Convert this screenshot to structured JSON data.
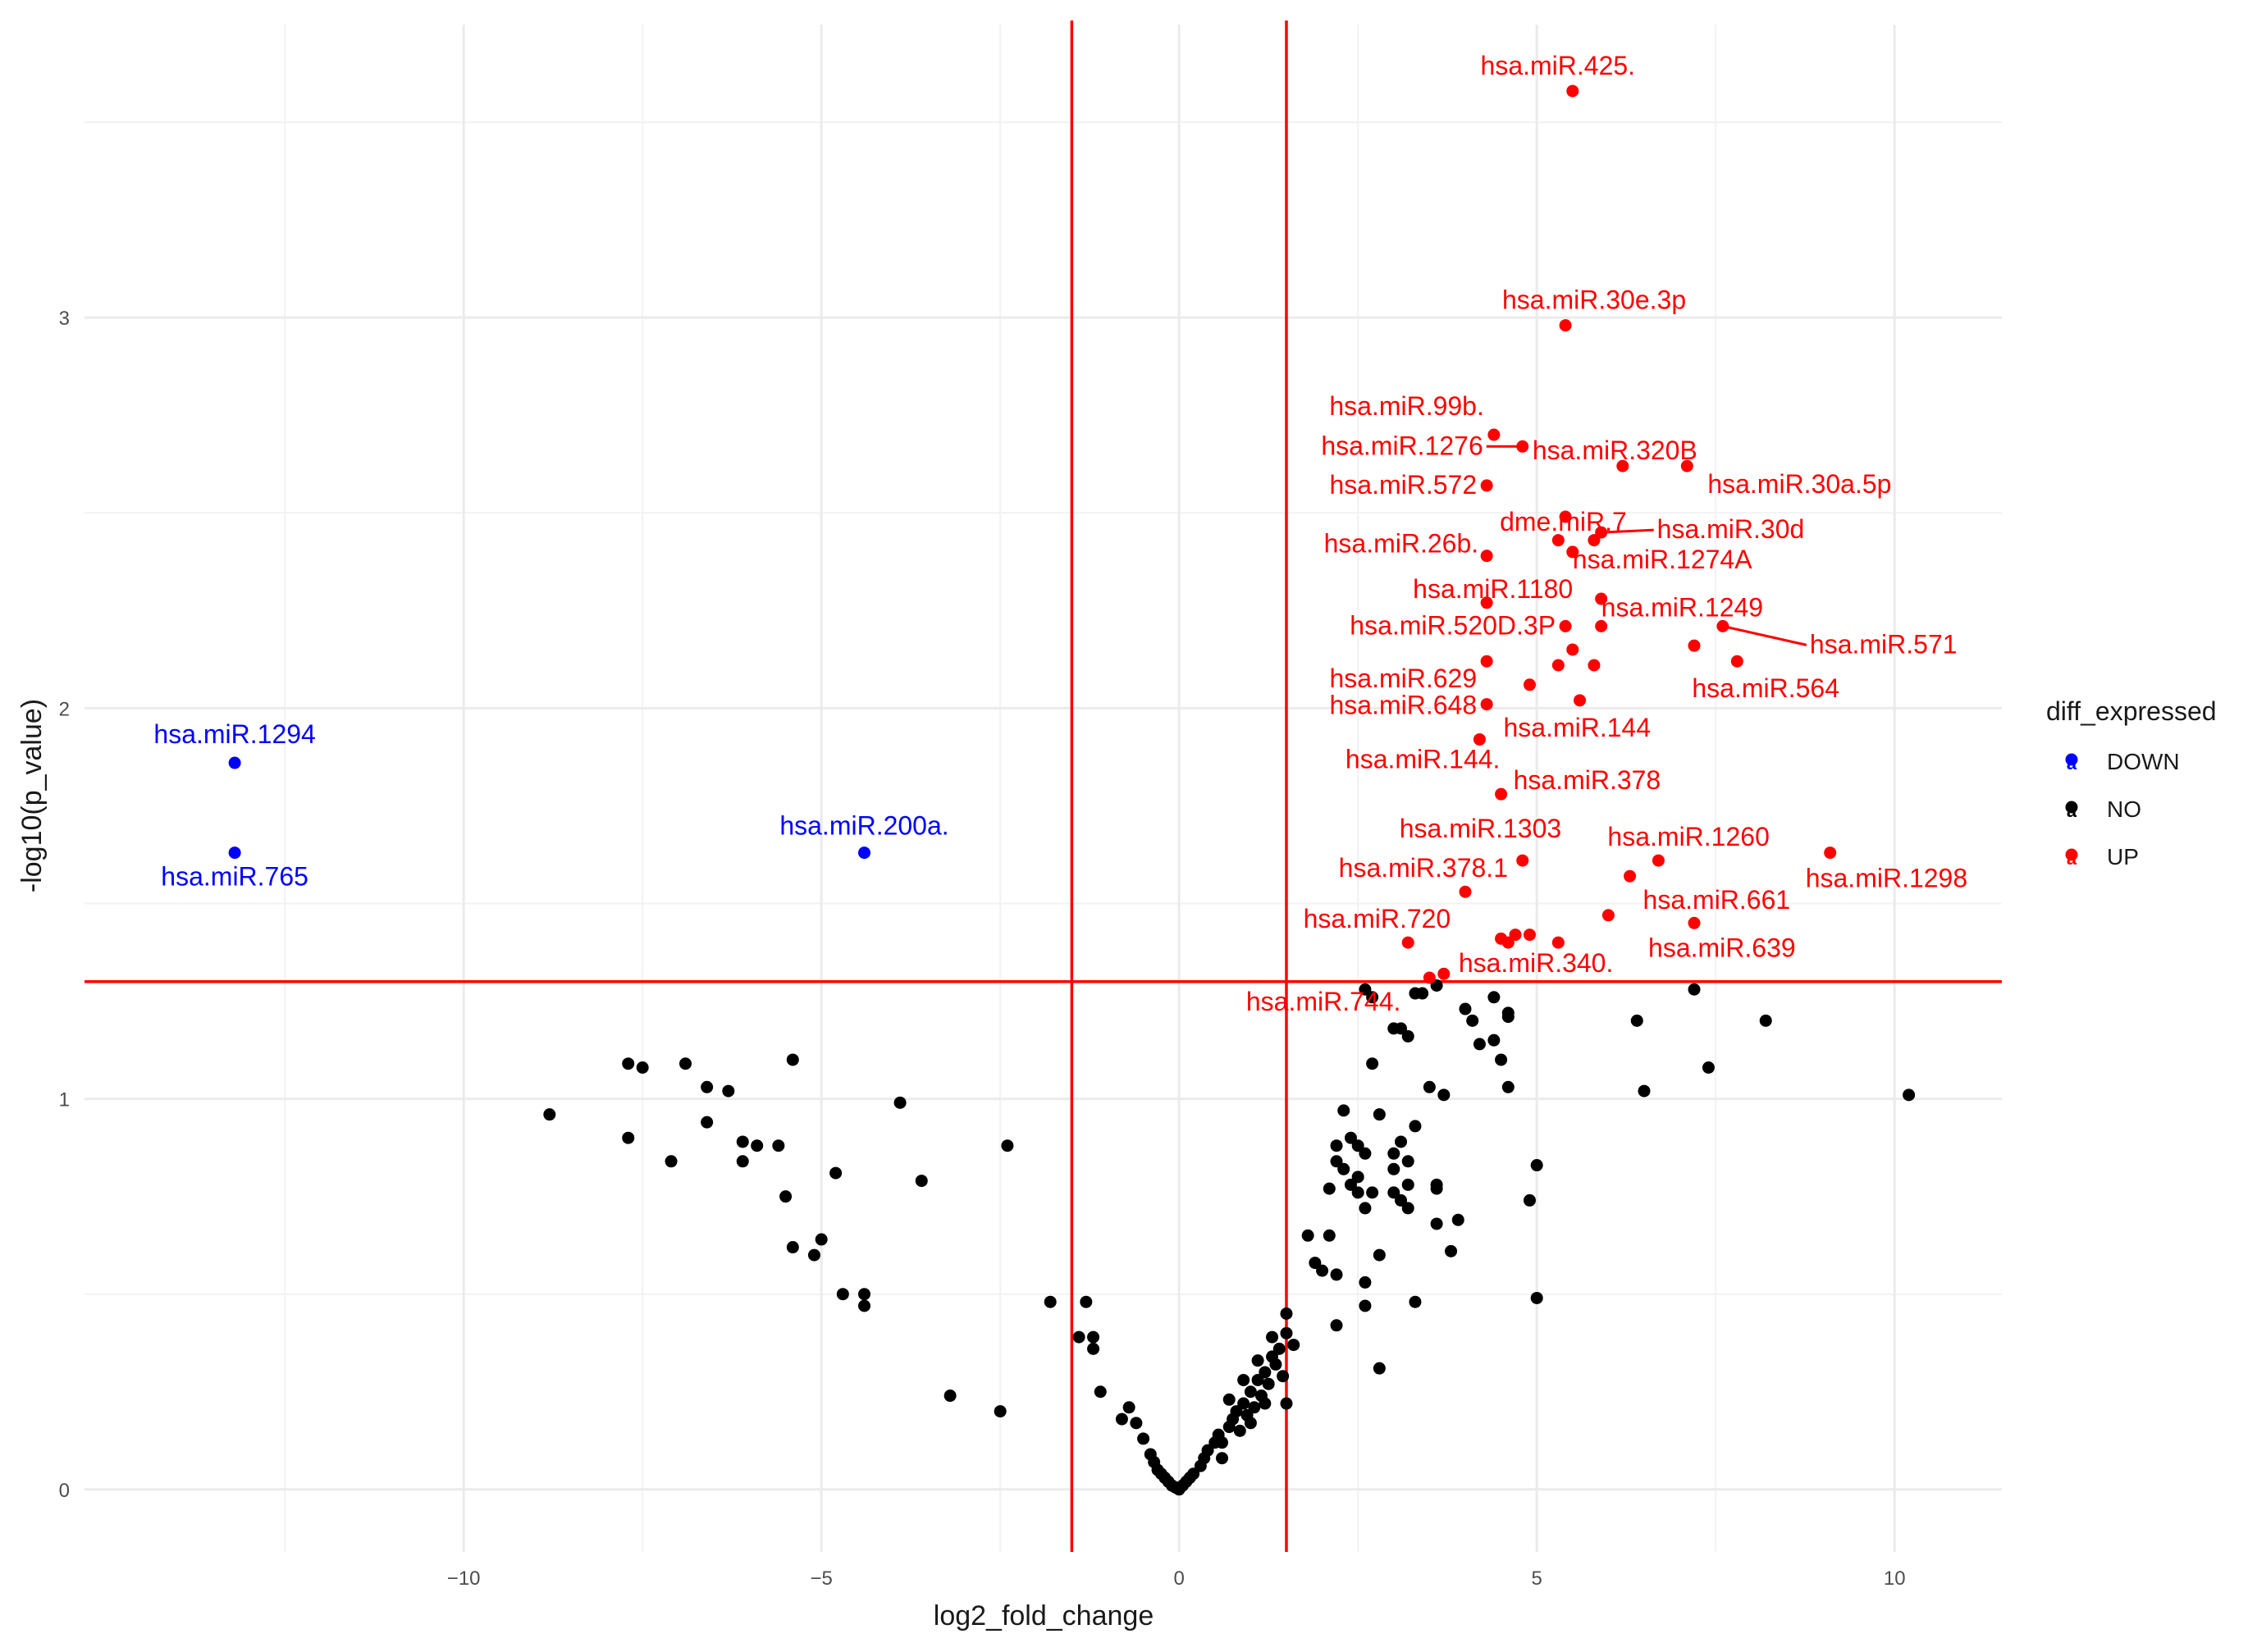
{
  "chart_data": {
    "type": "scatter",
    "title": "",
    "xlabel": "log2_fold_change",
    "ylabel": "-log10(p_value)",
    "xlim": [
      -15.3,
      11.5
    ],
    "ylim": [
      -0.16,
      3.75
    ],
    "x_ticks": [
      -10,
      -5,
      0,
      5,
      10
    ],
    "y_ticks": [
      0,
      1,
      2,
      3
    ],
    "grid": true,
    "thresholds": {
      "x": [
        -1.5,
        1.5
      ],
      "y": 1.3,
      "color": "#ff0000"
    },
    "legend": {
      "title": "diff_expressed",
      "placement": "right",
      "entries": [
        {
          "label": "DOWN",
          "color": "#0000ff"
        },
        {
          "label": "NO",
          "color": "#000000"
        },
        {
          "label": "UP",
          "color": "#ff0000"
        }
      ]
    },
    "series": [
      {
        "name": "DOWN",
        "color": "#0000ff",
        "points": [
          {
            "x": -13.2,
            "y": 1.86,
            "label": "hsa.miR.1294"
          },
          {
            "x": -13.2,
            "y": 1.63,
            "label": "hsa.miR.765"
          },
          {
            "x": -4.4,
            "y": 1.63,
            "label": "hsa.miR.200a."
          }
        ]
      },
      {
        "name": "UP",
        "color": "#ff0000",
        "points": [
          {
            "x": 5.5,
            "y": 3.58,
            "label": "hsa.miR.425."
          },
          {
            "x": 5.4,
            "y": 2.98,
            "label": "hsa.miR.30e.3p"
          },
          {
            "x": 4.4,
            "y": 2.7,
            "label": "hsa.miR.99b."
          },
          {
            "x": 4.8,
            "y": 2.67,
            "label": "hsa.miR.1276"
          },
          {
            "x": 6.2,
            "y": 2.62,
            "label": "hsa.miR.320B"
          },
          {
            "x": 7.1,
            "y": 2.62,
            "label": "hsa.miR.30a.5p"
          },
          {
            "x": 4.3,
            "y": 2.57,
            "label": "hsa.miR.572"
          },
          {
            "x": 5.4,
            "y": 2.49,
            "label": "dme.miR.7"
          },
          {
            "x": 5.9,
            "y": 2.45,
            "label": "hsa.miR.30d"
          },
          {
            "x": 5.3,
            "y": 2.43,
            "label": ""
          },
          {
            "x": 5.8,
            "y": 2.43,
            "label": ""
          },
          {
            "x": 5.5,
            "y": 2.4,
            "label": "hsa.miR.1274A"
          },
          {
            "x": 4.3,
            "y": 2.39,
            "label": "hsa.miR.26b."
          },
          {
            "x": 5.9,
            "y": 2.28,
            "label": ""
          },
          {
            "x": 4.3,
            "y": 2.27,
            "label": "hsa.miR.1180"
          },
          {
            "x": 5.4,
            "y": 2.21,
            "label": "hsa.miR.520D.3P"
          },
          {
            "x": 5.9,
            "y": 2.21,
            "label": "hsa.miR.1249"
          },
          {
            "x": 7.6,
            "y": 2.21,
            "label": "hsa.miR.571"
          },
          {
            "x": 7.2,
            "y": 2.16,
            "label": ""
          },
          {
            "x": 5.5,
            "y": 2.15,
            "label": ""
          },
          {
            "x": 4.3,
            "y": 2.12,
            "label": "hsa.miR.629"
          },
          {
            "x": 5.3,
            "y": 2.11,
            "label": ""
          },
          {
            "x": 5.8,
            "y": 2.11,
            "label": ""
          },
          {
            "x": 7.8,
            "y": 2.12,
            "label": "hsa.miR.564"
          },
          {
            "x": 4.9,
            "y": 2.06,
            "label": ""
          },
          {
            "x": 5.6,
            "y": 2.02,
            "label": "hsa.miR.144"
          },
          {
            "x": 4.3,
            "y": 2.01,
            "label": "hsa.miR.648"
          },
          {
            "x": 4.2,
            "y": 1.92,
            "label": "hsa.miR.144."
          },
          {
            "x": 4.5,
            "y": 1.78,
            "label": "hsa.miR.378"
          },
          {
            "x": 9.1,
            "y": 1.63,
            "label": "hsa.miR.1298"
          },
          {
            "x": 6.7,
            "y": 1.61,
            "label": "hsa.miR.1260"
          },
          {
            "x": 4.8,
            "y": 1.61,
            "label": "hsa.miR.1303"
          },
          {
            "x": 6.3,
            "y": 1.57,
            "label": "hsa.miR.661"
          },
          {
            "x": 4.0,
            "y": 1.53,
            "label": "hsa.miR.378.1"
          },
          {
            "x": 6.0,
            "y": 1.47,
            "label": ""
          },
          {
            "x": 7.2,
            "y": 1.45,
            "label": "hsa.miR.639"
          },
          {
            "x": 4.7,
            "y": 1.42,
            "label": ""
          },
          {
            "x": 4.9,
            "y": 1.42,
            "label": ""
          },
          {
            "x": 4.5,
            "y": 1.41,
            "label": ""
          },
          {
            "x": 4.6,
            "y": 1.4,
            "label": ""
          },
          {
            "x": 5.3,
            "y": 1.4,
            "label": ""
          },
          {
            "x": 3.2,
            "y": 1.4,
            "label": "hsa.miR.720"
          },
          {
            "x": 3.7,
            "y": 1.32,
            "label": "hsa.miR.340."
          },
          {
            "x": 3.5,
            "y": 1.31,
            "label": "hsa.miR.744."
          }
        ]
      },
      {
        "name": "NO",
        "color": "#000000",
        "points": [
          {
            "x": -8.8,
            "y": 0.96
          },
          {
            "x": -7.7,
            "y": 1.09
          },
          {
            "x": -7.5,
            "y": 1.08
          },
          {
            "x": -6.9,
            "y": 1.09
          },
          {
            "x": -6.6,
            "y": 1.03
          },
          {
            "x": -6.3,
            "y": 1.02
          },
          {
            "x": -5.4,
            "y": 1.1
          },
          {
            "x": -7.7,
            "y": 0.9
          },
          {
            "x": -7.1,
            "y": 0.84
          },
          {
            "x": -6.6,
            "y": 0.94
          },
          {
            "x": -6.1,
            "y": 0.89
          },
          {
            "x": -5.9,
            "y": 0.88
          },
          {
            "x": -5.6,
            "y": 0.88
          },
          {
            "x": -6.1,
            "y": 0.84
          },
          {
            "x": -5.5,
            "y": 0.75
          },
          {
            "x": -4.8,
            "y": 0.81
          },
          {
            "x": -3.9,
            "y": 0.99
          },
          {
            "x": -3.6,
            "y": 0.79
          },
          {
            "x": -2.4,
            "y": 0.88
          },
          {
            "x": -5.4,
            "y": 0.62
          },
          {
            "x": -5.0,
            "y": 0.64
          },
          {
            "x": -5.1,
            "y": 0.6
          },
          {
            "x": -4.7,
            "y": 0.5
          },
          {
            "x": -4.4,
            "y": 0.5
          },
          {
            "x": -4.4,
            "y": 0.47
          },
          {
            "x": -3.2,
            "y": 0.24
          },
          {
            "x": -2.5,
            "y": 0.2
          },
          {
            "x": -1.8,
            "y": 0.48
          },
          {
            "x": -1.3,
            "y": 0.48
          },
          {
            "x": -1.4,
            "y": 0.39
          },
          {
            "x": -1.2,
            "y": 0.39
          },
          {
            "x": -1.2,
            "y": 0.36
          },
          {
            "x": -1.1,
            "y": 0.25
          },
          {
            "x": -0.8,
            "y": 0.18
          },
          {
            "x": -0.7,
            "y": 0.21
          },
          {
            "x": -0.6,
            "y": 0.17
          },
          {
            "x": -0.5,
            "y": 0.13
          },
          {
            "x": -0.4,
            "y": 0.09
          },
          {
            "x": -0.35,
            "y": 0.07
          },
          {
            "x": -0.3,
            "y": 0.05
          },
          {
            "x": -0.25,
            "y": 0.04
          },
          {
            "x": -0.2,
            "y": 0.03
          },
          {
            "x": -0.15,
            "y": 0.02
          },
          {
            "x": -0.1,
            "y": 0.01
          },
          {
            "x": -0.05,
            "y": 0.005
          },
          {
            "x": 0.0,
            "y": 0.0
          },
          {
            "x": 0.05,
            "y": 0.01
          },
          {
            "x": 0.1,
            "y": 0.02
          },
          {
            "x": 0.15,
            "y": 0.03
          },
          {
            "x": 0.2,
            "y": 0.04
          },
          {
            "x": 0.3,
            "y": 0.06
          },
          {
            "x": 0.35,
            "y": 0.08
          },
          {
            "x": 0.4,
            "y": 0.1
          },
          {
            "x": 0.5,
            "y": 0.12
          },
          {
            "x": 0.55,
            "y": 0.14
          },
          {
            "x": 0.6,
            "y": 0.12
          },
          {
            "x": 0.7,
            "y": 0.16
          },
          {
            "x": 0.75,
            "y": 0.18
          },
          {
            "x": 0.8,
            "y": 0.2
          },
          {
            "x": 0.85,
            "y": 0.15
          },
          {
            "x": 0.9,
            "y": 0.22
          },
          {
            "x": 0.95,
            "y": 0.19
          },
          {
            "x": 1.0,
            "y": 0.25
          },
          {
            "x": 1.05,
            "y": 0.21
          },
          {
            "x": 1.1,
            "y": 0.28
          },
          {
            "x": 1.15,
            "y": 0.24
          },
          {
            "x": 1.2,
            "y": 0.3
          },
          {
            "x": 1.25,
            "y": 0.27
          },
          {
            "x": 1.3,
            "y": 0.34
          },
          {
            "x": 1.35,
            "y": 0.32
          },
          {
            "x": 1.4,
            "y": 0.36
          },
          {
            "x": 1.45,
            "y": 0.29
          },
          {
            "x": 1.1,
            "y": 0.33
          },
          {
            "x": 0.9,
            "y": 0.28
          },
          {
            "x": 1.0,
            "y": 0.17
          },
          {
            "x": 1.2,
            "y": 0.22
          },
          {
            "x": 0.7,
            "y": 0.23
          },
          {
            "x": 1.3,
            "y": 0.39
          },
          {
            "x": 0.6,
            "y": 0.08
          },
          {
            "x": 1.5,
            "y": 0.45
          },
          {
            "x": 1.5,
            "y": 0.4
          },
          {
            "x": 1.6,
            "y": 0.37
          },
          {
            "x": 1.5,
            "y": 0.22
          },
          {
            "x": 1.8,
            "y": 0.65
          },
          {
            "x": 1.9,
            "y": 0.58
          },
          {
            "x": 2.0,
            "y": 0.56
          },
          {
            "x": 2.1,
            "y": 0.65
          },
          {
            "x": 2.2,
            "y": 0.42
          },
          {
            "x": 2.2,
            "y": 0.55
          },
          {
            "x": 2.1,
            "y": 0.77
          },
          {
            "x": 2.2,
            "y": 0.84
          },
          {
            "x": 2.3,
            "y": 0.97
          },
          {
            "x": 2.2,
            "y": 0.88
          },
          {
            "x": 2.4,
            "y": 0.9
          },
          {
            "x": 2.5,
            "y": 0.8
          },
          {
            "x": 2.5,
            "y": 0.88
          },
          {
            "x": 2.4,
            "y": 0.78
          },
          {
            "x": 2.6,
            "y": 0.86
          },
          {
            "x": 2.3,
            "y": 0.82
          },
          {
            "x": 2.5,
            "y": 0.76
          },
          {
            "x": 2.6,
            "y": 0.72
          },
          {
            "x": 2.7,
            "y": 0.76
          },
          {
            "x": 2.6,
            "y": 0.47
          },
          {
            "x": 2.6,
            "y": 0.53
          },
          {
            "x": 2.8,
            "y": 0.31
          },
          {
            "x": 2.7,
            "y": 1.09
          },
          {
            "x": 2.8,
            "y": 0.96
          },
          {
            "x": 2.8,
            "y": 0.6
          },
          {
            "x": 2.6,
            "y": 1.28
          },
          {
            "x": 2.7,
            "y": 1.26
          },
          {
            "x": 3.0,
            "y": 1.18
          },
          {
            "x": 3.0,
            "y": 0.86
          },
          {
            "x": 3.0,
            "y": 0.82
          },
          {
            "x": 3.0,
            "y": 0.76
          },
          {
            "x": 3.1,
            "y": 0.74
          },
          {
            "x": 3.1,
            "y": 0.89
          },
          {
            "x": 3.2,
            "y": 0.84
          },
          {
            "x": 3.2,
            "y": 0.78
          },
          {
            "x": 3.2,
            "y": 0.72
          },
          {
            "x": 3.3,
            "y": 0.93
          },
          {
            "x": 3.1,
            "y": 1.18
          },
          {
            "x": 3.2,
            "y": 1.16
          },
          {
            "x": 3.3,
            "y": 1.27
          },
          {
            "x": 3.4,
            "y": 1.27
          },
          {
            "x": 3.3,
            "y": 0.48
          },
          {
            "x": 3.5,
            "y": 1.03
          },
          {
            "x": 3.6,
            "y": 1.29
          },
          {
            "x": 3.7,
            "y": 1.01
          },
          {
            "x": 3.6,
            "y": 0.78
          },
          {
            "x": 3.6,
            "y": 0.77
          },
          {
            "x": 3.6,
            "y": 0.68
          },
          {
            "x": 3.8,
            "y": 0.61
          },
          {
            "x": 3.9,
            "y": 0.69
          },
          {
            "x": 4.0,
            "y": 1.23
          },
          {
            "x": 4.1,
            "y": 1.2
          },
          {
            "x": 4.2,
            "y": 1.14
          },
          {
            "x": 4.4,
            "y": 1.26
          },
          {
            "x": 4.4,
            "y": 1.15
          },
          {
            "x": 4.5,
            "y": 1.1
          },
          {
            "x": 4.6,
            "y": 1.21
          },
          {
            "x": 4.6,
            "y": 1.22
          },
          {
            "x": 4.6,
            "y": 1.03
          },
          {
            "x": 5.0,
            "y": 0.83
          },
          {
            "x": 4.9,
            "y": 0.74
          },
          {
            "x": 5.0,
            "y": 0.49
          },
          {
            "x": 6.4,
            "y": 1.2
          },
          {
            "x": 6.5,
            "y": 1.02
          },
          {
            "x": 7.2,
            "y": 1.28
          },
          {
            "x": 7.4,
            "y": 1.08
          },
          {
            "x": 8.2,
            "y": 1.2
          },
          {
            "x": 10.2,
            "y": 1.01
          }
        ]
      }
    ]
  }
}
